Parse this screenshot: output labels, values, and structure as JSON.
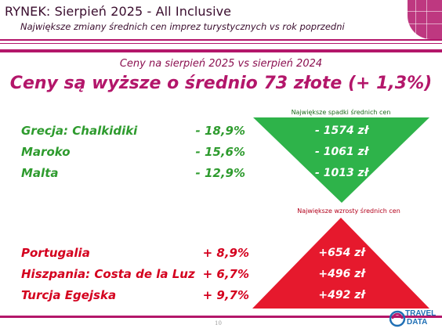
{
  "header": {
    "title": "RYNEK: Sierpień 2025 - All Inclusive",
    "subtitle": "Największe zmiany średnich cen imprez turystycznych vs rok poprzedni"
  },
  "comparison_label": "Ceny na sierpień 2025 vs sierpień 2024",
  "headline": "Ceny są wyższe o średnio 73 złote (+ 1,3%)",
  "decreases": {
    "label": "Największe spadki średnich cen",
    "color": "#2eb34a",
    "rows": [
      {
        "country": "Grecja: Chalkidiki",
        "pct": "- 18,9%",
        "value": "- 1574 zł"
      },
      {
        "country": "Maroko",
        "pct": "- 15,6%",
        "value": "- 1061 zł"
      },
      {
        "country": "Malta",
        "pct": "- 12,9%",
        "value": "- 1013 zł"
      }
    ]
  },
  "increases": {
    "label": "Największe wzrosty średnich cen",
    "color": "#e6192d",
    "rows": [
      {
        "country": "Portugalia",
        "pct": "+ 8,9%",
        "value": "+654 zł"
      },
      {
        "country": "Hiszpania: Costa de la Luz",
        "pct": "+ 6,7%",
        "value": "+496 zł"
      },
      {
        "country": "Turcja Egejska",
        "pct": "+ 9,7%",
        "value": "+492 zł"
      }
    ]
  },
  "footer": {
    "page_number": "10",
    "logo_text_top": "TRAVEL",
    "logo_text_bottom": "DATA"
  },
  "colors": {
    "accent": "#b3166a",
    "green": "#2e9b2e",
    "red": "#d4001e"
  }
}
